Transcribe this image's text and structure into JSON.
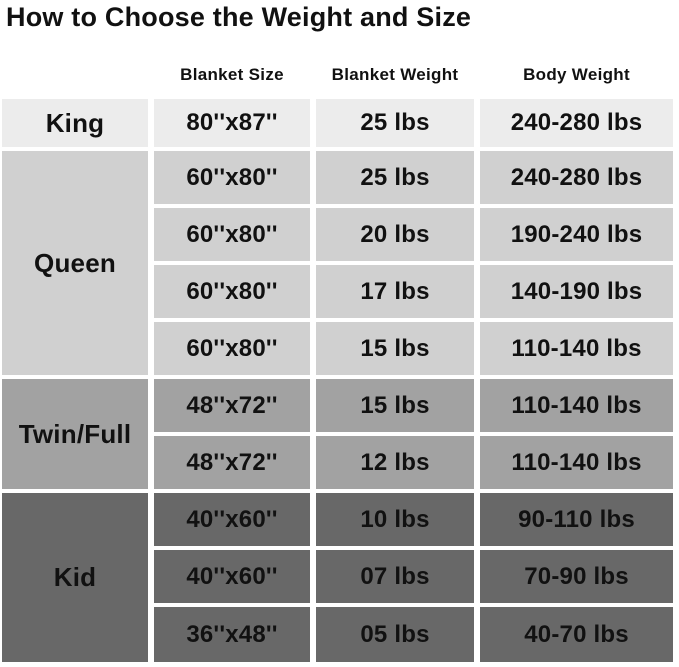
{
  "page_title": "How to Choose the Weight and Size",
  "colors": {
    "king_row": "#ececec",
    "queen_row": "#d0d0d0",
    "twin_full_row": "#a2a2a2",
    "kid_row": "#686868",
    "text": "#111111",
    "gap": "#ffffff"
  },
  "chart_data": {
    "type": "table",
    "title": "How to Choose the Weight and Size",
    "columns": [
      "Blanket Size",
      "Blanket Weight",
      "Body Weight"
    ],
    "groups": [
      {
        "label": "King",
        "rows": [
          [
            "80''x87''",
            "25 lbs",
            "240-280 lbs"
          ]
        ]
      },
      {
        "label": "Queen",
        "rows": [
          [
            "60''x80''",
            "25 lbs",
            "240-280 lbs"
          ],
          [
            "60''x80''",
            "20 lbs",
            "190-240 lbs"
          ],
          [
            "60''x80''",
            "17 lbs",
            "140-190 lbs"
          ],
          [
            "60''x80''",
            "15 lbs",
            "110-140 lbs"
          ]
        ]
      },
      {
        "label": "Twin/Full",
        "rows": [
          [
            "48''x72''",
            "15 lbs",
            "110-140 lbs"
          ],
          [
            "48''x72''",
            "12 lbs",
            "110-140 lbs"
          ]
        ]
      },
      {
        "label": "Kid",
        "rows": [
          [
            "40''x60''",
            "10 lbs",
            "90-110 lbs"
          ],
          [
            "40''x60''",
            "07 lbs",
            "70-90 lbs"
          ],
          [
            "36''x48''",
            "05 lbs",
            "40-70 lbs"
          ]
        ]
      }
    ]
  }
}
